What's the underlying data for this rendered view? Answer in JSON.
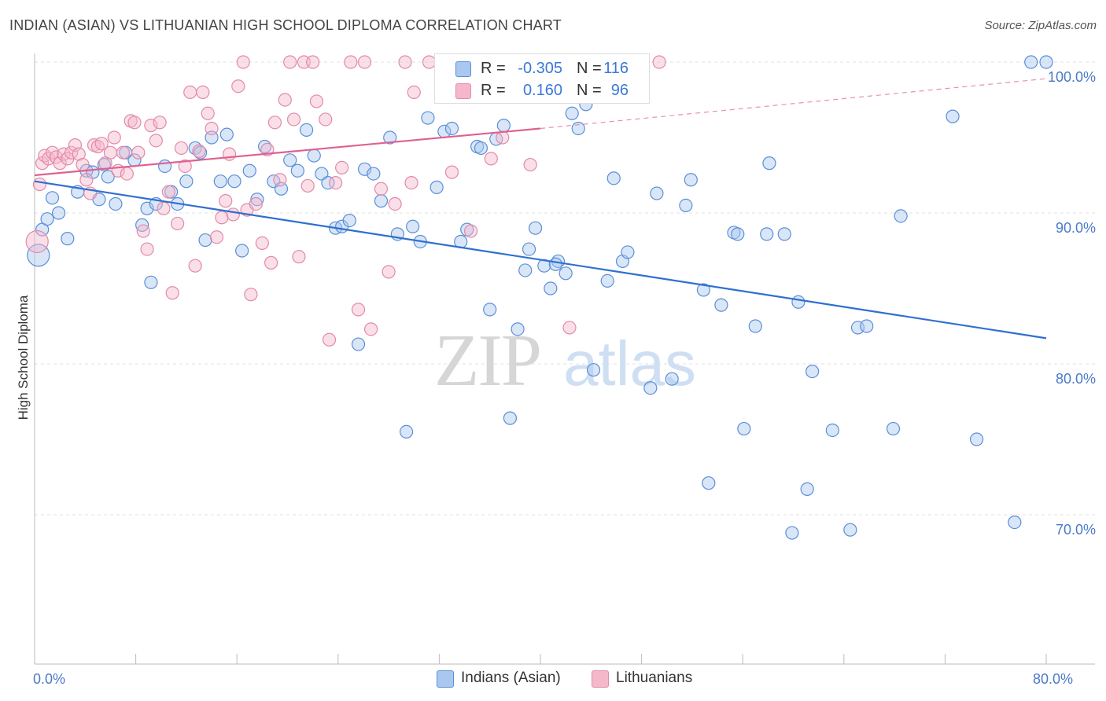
{
  "title": "INDIAN (ASIAN) VS LITHUANIAN HIGH SCHOOL DIPLOMA CORRELATION CHART",
  "source": "Source: ZipAtlas.com",
  "watermark": {
    "zip": "ZIP",
    "atlas": "atlas"
  },
  "colors": {
    "blue_fill": "#a9c8f0",
    "blue_stroke": "#5b8fd6",
    "blue_line": "#2f6fd0",
    "pink_fill": "#f5b8cb",
    "pink_stroke": "#e28aa8",
    "pink_line": "#e06090",
    "tick_text": "#4a7ac9",
    "grid": "#e2e2e2"
  },
  "legend": {
    "rows": [
      {
        "r_label": "R =",
        "r_value": "-0.305",
        "n_label": "N =",
        "n_value": "116",
        "swatch": "#a9c8f0"
      },
      {
        "r_label": "R =",
        "r_value": "0.160",
        "n_label": "N =",
        "n_value": "96",
        "swatch": "#f5b8cb"
      }
    ]
  },
  "bottom_legend": {
    "items": [
      {
        "label": "Indians (Asian)",
        "swatch": "#a9c8f0"
      },
      {
        "label": "Lithuanians",
        "swatch": "#f5b8cb"
      }
    ]
  },
  "chart_data": {
    "type": "scatter",
    "title": "INDIAN (ASIAN) VS LITHUANIAN HIGH SCHOOL DIPLOMA CORRELATION CHART",
    "xlabel": "",
    "ylabel": "High School Diploma",
    "xlim": [
      0,
      80
    ],
    "ylim": [
      60,
      104
    ],
    "x_tick_labels": [
      {
        "value": 0,
        "label": "0.0%"
      },
      {
        "value": 80,
        "label": "80.0%"
      }
    ],
    "y_tick_labels": [
      {
        "value": 100,
        "label": "100.0%"
      },
      {
        "value": 90,
        "label": "90.0%"
      },
      {
        "value": 80,
        "label": "80.0%"
      },
      {
        "value": 70,
        "label": "70.0%"
      }
    ],
    "grid": true,
    "legend_placement": "top-center",
    "series": [
      {
        "name": "Indians (Asian)",
        "color": "#a9c8f0",
        "trend": {
          "x0": 0,
          "y0": 92.1,
          "x1": 80,
          "y1": 81.7,
          "r": -0.305,
          "n": 116
        },
        "points": [
          [
            0.3,
            87.2
          ],
          [
            0.6,
            88.9
          ],
          [
            1.0,
            89.6
          ],
          [
            1.4,
            91.0
          ],
          [
            1.9,
            90.0
          ],
          [
            2.6,
            88.3
          ],
          [
            3.4,
            91.4
          ],
          [
            4.1,
            92.8
          ],
          [
            4.6,
            92.7
          ],
          [
            5.1,
            90.9
          ],
          [
            5.5,
            93.2
          ],
          [
            5.8,
            92.4
          ],
          [
            6.4,
            90.6
          ],
          [
            7.2,
            94.0
          ],
          [
            7.9,
            93.5
          ],
          [
            8.5,
            89.2
          ],
          [
            8.9,
            90.3
          ],
          [
            9.2,
            85.4
          ],
          [
            9.6,
            90.6
          ],
          [
            10.3,
            93.1
          ],
          [
            10.8,
            91.4
          ],
          [
            11.3,
            90.6
          ],
          [
            12.0,
            92.1
          ],
          [
            12.7,
            94.3
          ],
          [
            13.1,
            94.0
          ],
          [
            13.5,
            88.2
          ],
          [
            14.0,
            95.0
          ],
          [
            14.7,
            92.1
          ],
          [
            15.2,
            95.2
          ],
          [
            15.8,
            92.1
          ],
          [
            16.4,
            87.5
          ],
          [
            17.0,
            92.8
          ],
          [
            17.6,
            90.9
          ],
          [
            18.2,
            94.4
          ],
          [
            18.9,
            92.1
          ],
          [
            19.5,
            91.6
          ],
          [
            20.2,
            93.5
          ],
          [
            20.8,
            92.8
          ],
          [
            21.5,
            95.5
          ],
          [
            22.1,
            93.8
          ],
          [
            22.7,
            92.6
          ],
          [
            23.2,
            92.0
          ],
          [
            23.8,
            89.0
          ],
          [
            24.3,
            89.1
          ],
          [
            24.9,
            89.5
          ],
          [
            25.6,
            81.3
          ],
          [
            26.1,
            92.9
          ],
          [
            26.8,
            92.6
          ],
          [
            27.4,
            90.8
          ],
          [
            28.1,
            95.0
          ],
          [
            28.7,
            88.6
          ],
          [
            29.4,
            75.5
          ],
          [
            29.9,
            89.1
          ],
          [
            30.5,
            88.1
          ],
          [
            31.1,
            96.3
          ],
          [
            31.8,
            91.7
          ],
          [
            32.4,
            95.4
          ],
          [
            33.0,
            95.6
          ],
          [
            33.7,
            88.1
          ],
          [
            34.2,
            88.9
          ],
          [
            35.0,
            94.4
          ],
          [
            35.3,
            94.3
          ],
          [
            36.0,
            83.6
          ],
          [
            36.5,
            94.9
          ],
          [
            37.1,
            95.8
          ],
          [
            37.6,
            76.4
          ],
          [
            38.2,
            82.3
          ],
          [
            38.8,
            86.2
          ],
          [
            39.1,
            87.6
          ],
          [
            39.6,
            89.0
          ],
          [
            40.3,
            86.5
          ],
          [
            40.8,
            85.0
          ],
          [
            41.4,
            86.8
          ],
          [
            42.0,
            86.0
          ],
          [
            42.5,
            96.6
          ],
          [
            43.0,
            95.6
          ],
          [
            43.6,
            97.2
          ],
          [
            44.2,
            79.6
          ],
          [
            44.9,
            100.0
          ],
          [
            45.3,
            85.5
          ],
          [
            45.8,
            92.3
          ],
          [
            46.5,
            86.8
          ],
          [
            46.9,
            87.4
          ],
          [
            48.7,
            78.4
          ],
          [
            49.2,
            91.3
          ],
          [
            50.4,
            79.0
          ],
          [
            51.5,
            90.5
          ],
          [
            51.9,
            92.2
          ],
          [
            52.9,
            84.9
          ],
          [
            53.3,
            72.1
          ],
          [
            54.3,
            83.9
          ],
          [
            55.3,
            88.7
          ],
          [
            55.6,
            88.6
          ],
          [
            56.1,
            75.7
          ],
          [
            57.0,
            82.5
          ],
          [
            57.9,
            88.6
          ],
          [
            58.1,
            93.3
          ],
          [
            59.3,
            88.6
          ],
          [
            59.9,
            68.8
          ],
          [
            60.4,
            84.1
          ],
          [
            61.1,
            71.7
          ],
          [
            61.5,
            79.5
          ],
          [
            63.1,
            75.6
          ],
          [
            64.5,
            69.0
          ],
          [
            65.1,
            82.4
          ],
          [
            65.8,
            82.5
          ],
          [
            67.9,
            75.7
          ],
          [
            68.5,
            89.8
          ],
          [
            72.6,
            96.4
          ],
          [
            74.5,
            75.0
          ],
          [
            77.5,
            69.5
          ],
          [
            78.8,
            100.0
          ],
          [
            80.0,
            100.0
          ],
          [
            41.2,
            86.6
          ]
        ]
      },
      {
        "name": "Lithuanians",
        "color": "#f5b8cb",
        "trend": {
          "x0": 0,
          "y0": 92.5,
          "x1": 40,
          "y1": 95.6,
          "x_dash_end": 80,
          "y_dash_end": 98.9,
          "r": 0.16,
          "n": 96
        },
        "points": [
          [
            0.2,
            88.1
          ],
          [
            0.4,
            91.9
          ],
          [
            0.6,
            93.3
          ],
          [
            0.8,
            93.8
          ],
          [
            1.1,
            93.6
          ],
          [
            1.4,
            94.0
          ],
          [
            1.7,
            93.7
          ],
          [
            2.0,
            93.3
          ],
          [
            2.3,
            93.9
          ],
          [
            2.6,
            93.6
          ],
          [
            2.9,
            94.0
          ],
          [
            3.2,
            94.5
          ],
          [
            3.5,
            93.9
          ],
          [
            3.8,
            93.2
          ],
          [
            4.1,
            92.2
          ],
          [
            4.4,
            91.3
          ],
          [
            4.7,
            94.5
          ],
          [
            5.0,
            94.4
          ],
          [
            5.3,
            94.6
          ],
          [
            5.6,
            93.3
          ],
          [
            6.0,
            94.0
          ],
          [
            6.3,
            95.0
          ],
          [
            6.6,
            92.8
          ],
          [
            7.0,
            94.0
          ],
          [
            7.3,
            92.6
          ],
          [
            7.6,
            96.1
          ],
          [
            7.9,
            96.0
          ],
          [
            8.2,
            94.0
          ],
          [
            8.6,
            88.8
          ],
          [
            8.9,
            87.6
          ],
          [
            9.2,
            95.8
          ],
          [
            9.6,
            94.8
          ],
          [
            9.9,
            96.0
          ],
          [
            10.2,
            90.3
          ],
          [
            10.6,
            91.4
          ],
          [
            10.9,
            84.7
          ],
          [
            11.3,
            89.3
          ],
          [
            11.6,
            94.3
          ],
          [
            11.9,
            93.1
          ],
          [
            12.3,
            98.0
          ],
          [
            12.7,
            86.5
          ],
          [
            13.0,
            94.1
          ],
          [
            13.3,
            98.0
          ],
          [
            13.7,
            96.6
          ],
          [
            14.0,
            95.6
          ],
          [
            14.4,
            88.4
          ],
          [
            14.8,
            89.7
          ],
          [
            15.1,
            90.8
          ],
          [
            15.4,
            93.9
          ],
          [
            15.7,
            89.9
          ],
          [
            16.1,
            98.4
          ],
          [
            16.5,
            100.0
          ],
          [
            16.8,
            90.2
          ],
          [
            17.1,
            84.6
          ],
          [
            17.5,
            90.6
          ],
          [
            18.0,
            88.0
          ],
          [
            18.4,
            94.2
          ],
          [
            18.7,
            86.7
          ],
          [
            19.0,
            96.0
          ],
          [
            19.4,
            92.2
          ],
          [
            19.8,
            97.5
          ],
          [
            20.2,
            100.0
          ],
          [
            20.5,
            96.2
          ],
          [
            20.9,
            87.1
          ],
          [
            21.3,
            100.0
          ],
          [
            21.6,
            91.8
          ],
          [
            22.0,
            100.0
          ],
          [
            22.3,
            97.4
          ],
          [
            23.0,
            96.2
          ],
          [
            23.3,
            81.6
          ],
          [
            23.8,
            92.0
          ],
          [
            24.3,
            93.0
          ],
          [
            25.0,
            100.0
          ],
          [
            25.6,
            83.6
          ],
          [
            26.1,
            100.0
          ],
          [
            26.6,
            82.3
          ],
          [
            27.4,
            91.6
          ],
          [
            28.0,
            86.1
          ],
          [
            28.5,
            90.6
          ],
          [
            29.3,
            100.0
          ],
          [
            29.8,
            92.0
          ],
          [
            30.0,
            98.0
          ],
          [
            31.2,
            100.0
          ],
          [
            32.4,
            100.0
          ],
          [
            33.0,
            92.7
          ],
          [
            34.5,
            88.8
          ],
          [
            35.2,
            100.0
          ],
          [
            36.1,
            93.6
          ],
          [
            36.5,
            100.0
          ],
          [
            37.0,
            95.0
          ],
          [
            39.2,
            93.2
          ],
          [
            40.7,
            100.0
          ],
          [
            42.3,
            82.4
          ],
          [
            44.5,
            100.0
          ],
          [
            47.7,
            100.0
          ],
          [
            49.4,
            100.0
          ]
        ]
      }
    ]
  }
}
